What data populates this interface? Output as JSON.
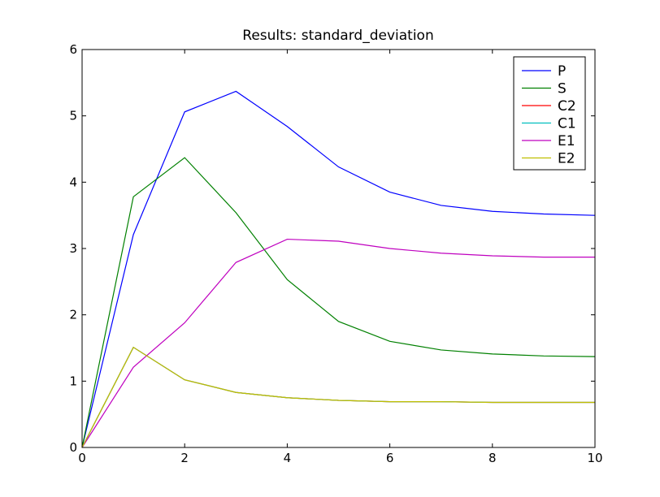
{
  "chart_data": {
    "type": "line",
    "title": "Results: standard_deviation",
    "xlabel": "",
    "ylabel": "",
    "xlim": [
      0,
      10
    ],
    "ylim": [
      0,
      6
    ],
    "xticks": [
      0,
      2,
      4,
      6,
      8,
      10
    ],
    "yticks": [
      0,
      1,
      2,
      3,
      4,
      5,
      6
    ],
    "x": [
      0,
      1,
      2,
      3,
      4,
      5,
      6,
      7,
      8,
      9,
      10
    ],
    "legend": "top-right",
    "grid": false,
    "series": [
      {
        "name": "P",
        "color": "#0000ff",
        "values": [
          0,
          3.21,
          5.06,
          5.37,
          4.84,
          4.23,
          3.85,
          3.65,
          3.56,
          3.52,
          3.5
        ]
      },
      {
        "name": "S",
        "color": "#008000",
        "values": [
          0,
          3.78,
          4.37,
          3.54,
          2.53,
          1.9,
          1.6,
          1.47,
          1.41,
          1.38,
          1.37
        ]
      },
      {
        "name": "C2",
        "color": "#ff0000",
        "values": [
          0,
          1.51,
          1.02,
          0.83,
          0.75,
          0.71,
          0.69,
          0.69,
          0.68,
          0.68,
          0.68
        ]
      },
      {
        "name": "C1",
        "color": "#00bfbf",
        "values": [
          0,
          1.51,
          1.02,
          0.83,
          0.75,
          0.71,
          0.69,
          0.69,
          0.68,
          0.68,
          0.68
        ]
      },
      {
        "name": "E1",
        "color": "#bf00bf",
        "values": [
          0,
          1.21,
          1.88,
          2.79,
          3.14,
          3.11,
          3.0,
          2.93,
          2.89,
          2.87,
          2.87
        ]
      },
      {
        "name": "E2",
        "color": "#bfbf00",
        "values": [
          0,
          1.51,
          1.02,
          0.83,
          0.75,
          0.71,
          0.69,
          0.69,
          0.68,
          0.68,
          0.68
        ]
      }
    ]
  }
}
